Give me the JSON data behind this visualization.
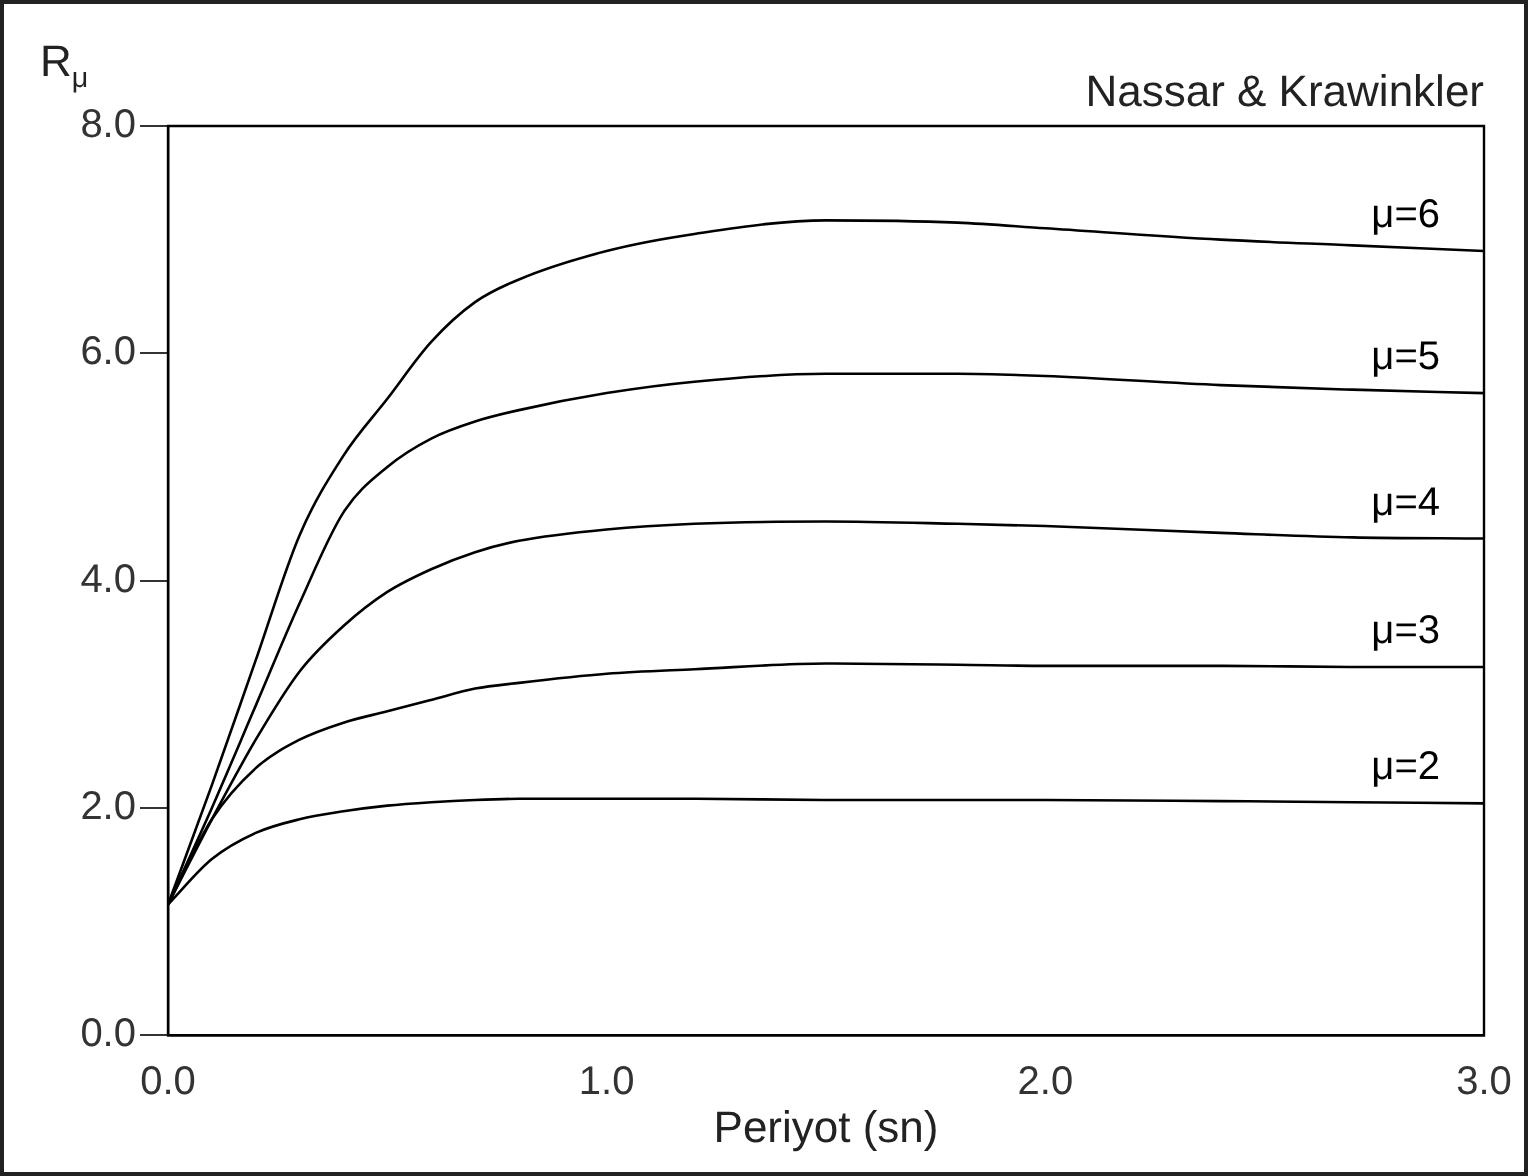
{
  "chart_data": {
    "type": "line",
    "title": "Nassar & Krawinkler",
    "xlabel": "Periyot (sn)",
    "ylabel": "R$_{μ}$",
    "x": [
      0,
      0.1,
      0.2,
      0.3,
      0.4,
      0.5,
      0.6,
      0.7,
      0.8,
      1.0,
      1.2,
      1.5,
      1.8,
      2.0,
      2.4,
      2.7,
      3.0
    ],
    "series": [
      {
        "name": "μ=6",
        "color": "#000000",
        "values": [
          1.15,
          2.2,
          3.3,
          4.4,
          5.1,
          5.6,
          6.1,
          6.45,
          6.65,
          6.9,
          7.05,
          7.17,
          7.15,
          7.1,
          7.0,
          6.95,
          6.9
        ]
      },
      {
        "name": "μ=5",
        "color": "#000000",
        "values": [
          1.15,
          2.0,
          2.9,
          3.8,
          4.6,
          5.0,
          5.25,
          5.4,
          5.5,
          5.65,
          5.75,
          5.82,
          5.82,
          5.8,
          5.72,
          5.68,
          5.65
        ]
      },
      {
        "name": "μ=4",
        "color": "#000000",
        "values": [
          1.15,
          1.9,
          2.6,
          3.2,
          3.6,
          3.9,
          4.1,
          4.25,
          4.35,
          4.45,
          4.5,
          4.52,
          4.5,
          4.48,
          4.42,
          4.38,
          4.37
        ]
      },
      {
        "name": "μ=3",
        "color": "#000000",
        "values": [
          1.15,
          1.9,
          2.35,
          2.6,
          2.75,
          2.85,
          2.95,
          3.05,
          3.1,
          3.18,
          3.22,
          3.27,
          3.26,
          3.25,
          3.25,
          3.24,
          3.24
        ]
      },
      {
        "name": "μ=2",
        "color": "#000000",
        "values": [
          1.15,
          1.55,
          1.78,
          1.9,
          1.97,
          2.02,
          2.05,
          2.07,
          2.08,
          2.08,
          2.08,
          2.07,
          2.07,
          2.07,
          2.06,
          2.05,
          2.04
        ]
      }
    ],
    "xlim": [
      0,
      3
    ],
    "xticks": [
      {
        "value": 0,
        "label": "0.0"
      },
      {
        "value": 1,
        "label": "1.0"
      },
      {
        "value": 2,
        "label": "2.0"
      },
      {
        "value": 3,
        "label": "3.0"
      }
    ],
    "ylim": [
      0,
      8
    ],
    "yticks": [
      {
        "value": 0,
        "label": "0.0"
      },
      {
        "value": 2,
        "label": "2.0"
      },
      {
        "value": 4,
        "label": "4.0"
      },
      {
        "value": 6,
        "label": "6.0"
      },
      {
        "value": 8,
        "label": "8.0"
      }
    ],
    "grid": false,
    "legend": false,
    "marker": "none",
    "line_style": "solid"
  }
}
